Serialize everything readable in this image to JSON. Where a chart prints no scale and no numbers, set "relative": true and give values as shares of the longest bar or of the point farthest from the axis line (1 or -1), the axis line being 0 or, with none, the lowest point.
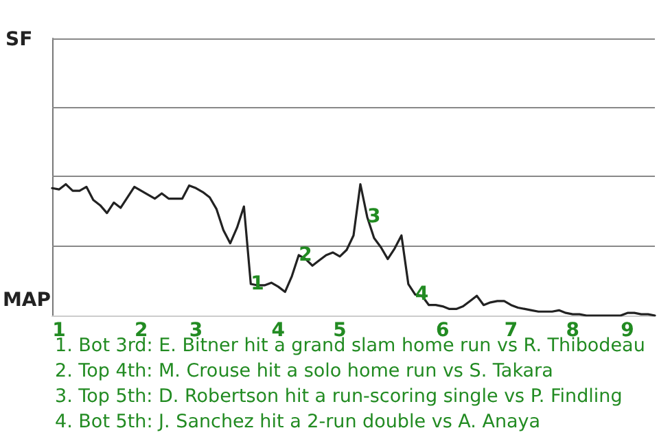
{
  "chart_data": {
    "type": "line",
    "relative": true,
    "categories": [
      null,
      "1",
      null,
      null,
      null,
      null,
      null,
      null,
      null,
      null,
      null,
      null,
      null,
      "2",
      null,
      null,
      null,
      null,
      null,
      null,
      null,
      "3",
      null,
      null,
      null,
      null,
      null,
      null,
      null,
      null,
      null,
      null,
      null,
      "4",
      null,
      null,
      null,
      null,
      null,
      null,
      null,
      null,
      "5",
      null,
      null,
      null,
      null,
      null,
      null,
      null,
      null,
      null,
      null,
      null,
      null,
      null,
      null,
      "6",
      null,
      null,
      null,
      null,
      null,
      null,
      null,
      null,
      null,
      "7",
      null,
      null,
      null,
      null,
      null,
      null,
      null,
      null,
      "8",
      null,
      null,
      null,
      null,
      null,
      null,
      null,
      "9",
      null,
      null,
      null,
      null
    ],
    "series": [
      {
        "color": "#222222",
        "values": [
          0.97,
          0.96,
          1,
          0.95,
          0.95,
          0.98,
          0.88,
          0.84,
          0.78,
          0.86,
          0.82,
          0.9,
          0.98,
          0.95,
          0.92,
          0.89,
          0.93,
          0.89,
          0.89,
          0.89,
          0.99,
          0.97,
          0.94,
          0.9,
          0.81,
          0.65,
          0.55,
          0.67,
          0.83,
          0.24,
          0.23,
          0.23,
          0.25,
          0.22,
          0.18,
          0.3,
          0.46,
          0.43,
          0.38,
          0.42,
          0.46,
          0.48,
          0.45,
          0.5,
          0.61,
          1,
          0.75,
          0.59,
          0.52,
          0.43,
          0.51,
          0.61,
          0.24,
          0.16,
          0.15,
          0.08,
          0.08,
          0.07,
          0.05,
          0.05,
          0.07,
          0.11,
          0.15,
          0.08,
          0.1,
          0.11,
          0.11,
          0.08,
          0.06,
          0.05,
          0.04,
          0.03,
          0.03,
          0.03,
          0.04,
          0.02,
          0.01,
          0.01,
          0,
          0,
          0,
          0,
          0,
          0,
          0.02,
          0.02,
          0.01,
          0.01,
          0
        ]
      }
    ],
    "ref_lines": [
      {
        "axis": "y",
        "value": 0.53,
        "color": "#888888"
      },
      {
        "axis": "y",
        "value": 1.06,
        "color": "#888888"
      },
      {
        "axis": "y",
        "value": 1.59,
        "color": "#888888"
      },
      {
        "axis": "y",
        "value": 2.11,
        "color": "#888888"
      }
    ],
    "marker": "none",
    "line_style": "solid",
    "annotations": [
      "SF",
      "MAP",
      {
        "text": "1",
        "y": 0.24
      },
      {
        "text": "2",
        "y": 0.46
      },
      {
        "text": "3",
        "y": 0.75
      },
      {
        "text": "4",
        "y": 0.16
      },
      "1. Bot 3rd: E. Bitner hit a grand slam home run vs R. Thibodeau",
      "2. Top 4th: M. Crouse hit a solo home run vs S. Takara",
      "3. Top 5th: D. Robertson hit a run-scoring single vs P. Findling",
      "4. Bot 5th: J. Sanchez hit a 2-run double vs A. Anaya"
    ]
  }
}
